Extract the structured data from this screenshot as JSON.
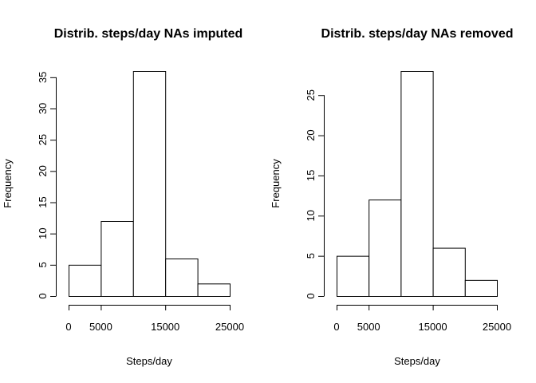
{
  "chart_data": [
    {
      "type": "bar",
      "title": "Distrib. steps/day NAs imputed",
      "xlabel": "Steps/day",
      "ylabel": "Frequency",
      "bins": [
        [
          0,
          5000
        ],
        [
          5000,
          10000
        ],
        [
          10000,
          15000
        ],
        [
          15000,
          20000
        ],
        [
          20000,
          25000
        ]
      ],
      "values": [
        5,
        12,
        36,
        6,
        2
      ],
      "xticks": [
        0,
        5000,
        15000,
        25000
      ],
      "yticks": [
        0,
        5,
        10,
        15,
        20,
        25,
        30,
        35
      ],
      "xlim": [
        0,
        25000
      ],
      "ylim": [
        0,
        36
      ]
    },
    {
      "type": "bar",
      "title": "Distrib. steps/day NAs removed",
      "xlabel": "Steps/day",
      "ylabel": "Frequency",
      "bins": [
        [
          0,
          5000
        ],
        [
          5000,
          10000
        ],
        [
          10000,
          15000
        ],
        [
          15000,
          20000
        ],
        [
          20000,
          25000
        ]
      ],
      "values": [
        5,
        12,
        28,
        6,
        2
      ],
      "xticks": [
        0,
        5000,
        15000,
        25000
      ],
      "yticks": [
        0,
        5,
        10,
        15,
        20,
        25
      ],
      "xlim": [
        0,
        25000
      ],
      "ylim": [
        0,
        28
      ]
    }
  ]
}
